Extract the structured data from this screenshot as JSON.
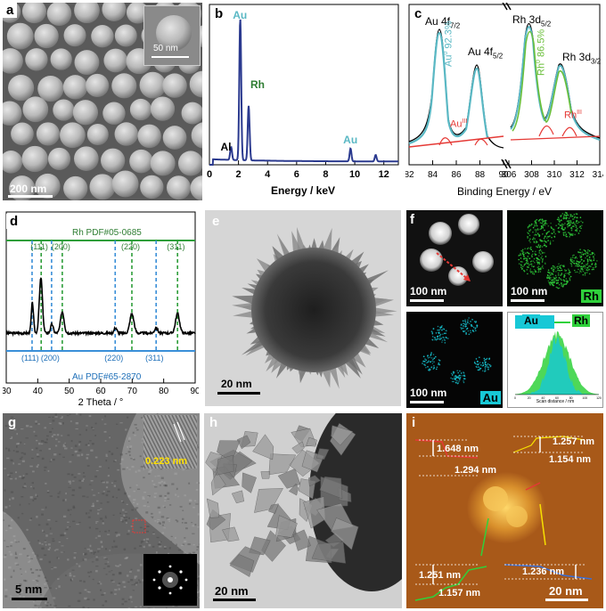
{
  "panels": {
    "a": {
      "label": "a",
      "scalebar": "200 nm",
      "inset_scalebar": "50 nm"
    },
    "b": {
      "label": "b"
    },
    "c": {
      "label": "c"
    },
    "d": {
      "label": "d"
    },
    "e": {
      "label": "e",
      "scalebar": "20 nm"
    },
    "f": {
      "label": "f",
      "scalebars": [
        "100 nm",
        "100 nm",
        "100 nm"
      ],
      "map_labels": [
        "Rh",
        "Au"
      ]
    },
    "g": {
      "label": "g",
      "scalebar": "5 nm",
      "lattice": "0.223 nm"
    },
    "h": {
      "label": "h",
      "scalebar": "20 nm"
    },
    "i": {
      "label": "i",
      "scalebar": "20 nm",
      "heights": [
        "1.648 nm",
        "1.294 nm",
        "1.257 nm",
        "1.154 nm",
        "1.251 nm",
        "1.157 nm",
        "1.236 nm"
      ]
    }
  },
  "chart_data": [
    {
      "id": "b",
      "type": "line",
      "xlabel": "Energy / keV",
      "ylabel": "",
      "xlim": [
        0,
        13
      ],
      "xticks": [
        0,
        2,
        4,
        6,
        8,
        10,
        12
      ],
      "peak_labels": [
        {
          "text": "Au",
          "x": 2.1,
          "color": "#5ab8c4"
        },
        {
          "text": "Rh",
          "x": 2.7,
          "color": "#2e7d32"
        },
        {
          "text": "Al",
          "x": 1.5,
          "color": "#000000"
        },
        {
          "text": "Au",
          "x": 9.7,
          "color": "#5ab8c4"
        }
      ],
      "peaks": [
        {
          "x": 1.49,
          "h": 0.08
        },
        {
          "x": 2.12,
          "h": 0.88
        },
        {
          "x": 2.7,
          "h": 0.34
        },
        {
          "x": 9.71,
          "h": 0.08
        },
        {
          "x": 11.44,
          "h": 0.04
        }
      ]
    },
    {
      "id": "c",
      "type": "line",
      "xlabel": "Binding Energy / eV",
      "segments": [
        {
          "xlim": [
            82,
            90
          ],
          "xticks": [
            82,
            84,
            86,
            88,
            90
          ]
        },
        {
          "xlim": [
            306,
            314
          ],
          "xticks": [
            306,
            308,
            310,
            312,
            314
          ]
        }
      ],
      "annotations": [
        {
          "text": "Au 4f",
          "sub": "7/2"
        },
        {
          "text": "Au 4f",
          "sub": "5/2"
        },
        {
          "text": "Rh 3d",
          "sub": "5/2"
        },
        {
          "text": "Rh 3d",
          "sub": "3/2"
        },
        {
          "text": "Au",
          "sup": "0",
          "after": " 92.3%"
        },
        {
          "text": "Au",
          "sup": "III"
        },
        {
          "text": "Rh",
          "sup": "0",
          "after": " 86.5%"
        },
        {
          "text": "Rh",
          "sup": "III"
        }
      ]
    },
    {
      "id": "d",
      "type": "line",
      "xlabel": "2 Theta / °",
      "xlim": [
        30,
        90
      ],
      "xticks": [
        30,
        40,
        50,
        60,
        70,
        80,
        90
      ],
      "rh_reference": "Rh PDF#05-0685",
      "au_reference": "Au PDF#65-2870",
      "rh_peaks": [
        {
          "hkl": "(111)",
          "x": 41.1
        },
        {
          "hkl": "(200)",
          "x": 47.8
        },
        {
          "hkl": "(220)",
          "x": 69.9
        },
        {
          "hkl": "(311)",
          "x": 84.4
        }
      ],
      "au_peaks": [
        {
          "hkl": "(111)",
          "x": 38.2
        },
        {
          "hkl": "(200)",
          "x": 44.4
        },
        {
          "hkl": "(220)",
          "x": 64.6
        },
        {
          "hkl": "(311)",
          "x": 77.6
        }
      ]
    },
    {
      "id": "f_line",
      "type": "area",
      "legend": [
        "Au",
        "Rh"
      ],
      "xlabel": "Scan distance / nm",
      "xticks": [
        0,
        20,
        40,
        60,
        80,
        100,
        120
      ]
    }
  ],
  "colors": {
    "au": "#5ab8c4",
    "rh": "#2e7d32",
    "au_map": "#17c8d6",
    "rh_map": "#2fd13b",
    "spectrum": "#2b3a8f",
    "afm": "#b5651d"
  }
}
